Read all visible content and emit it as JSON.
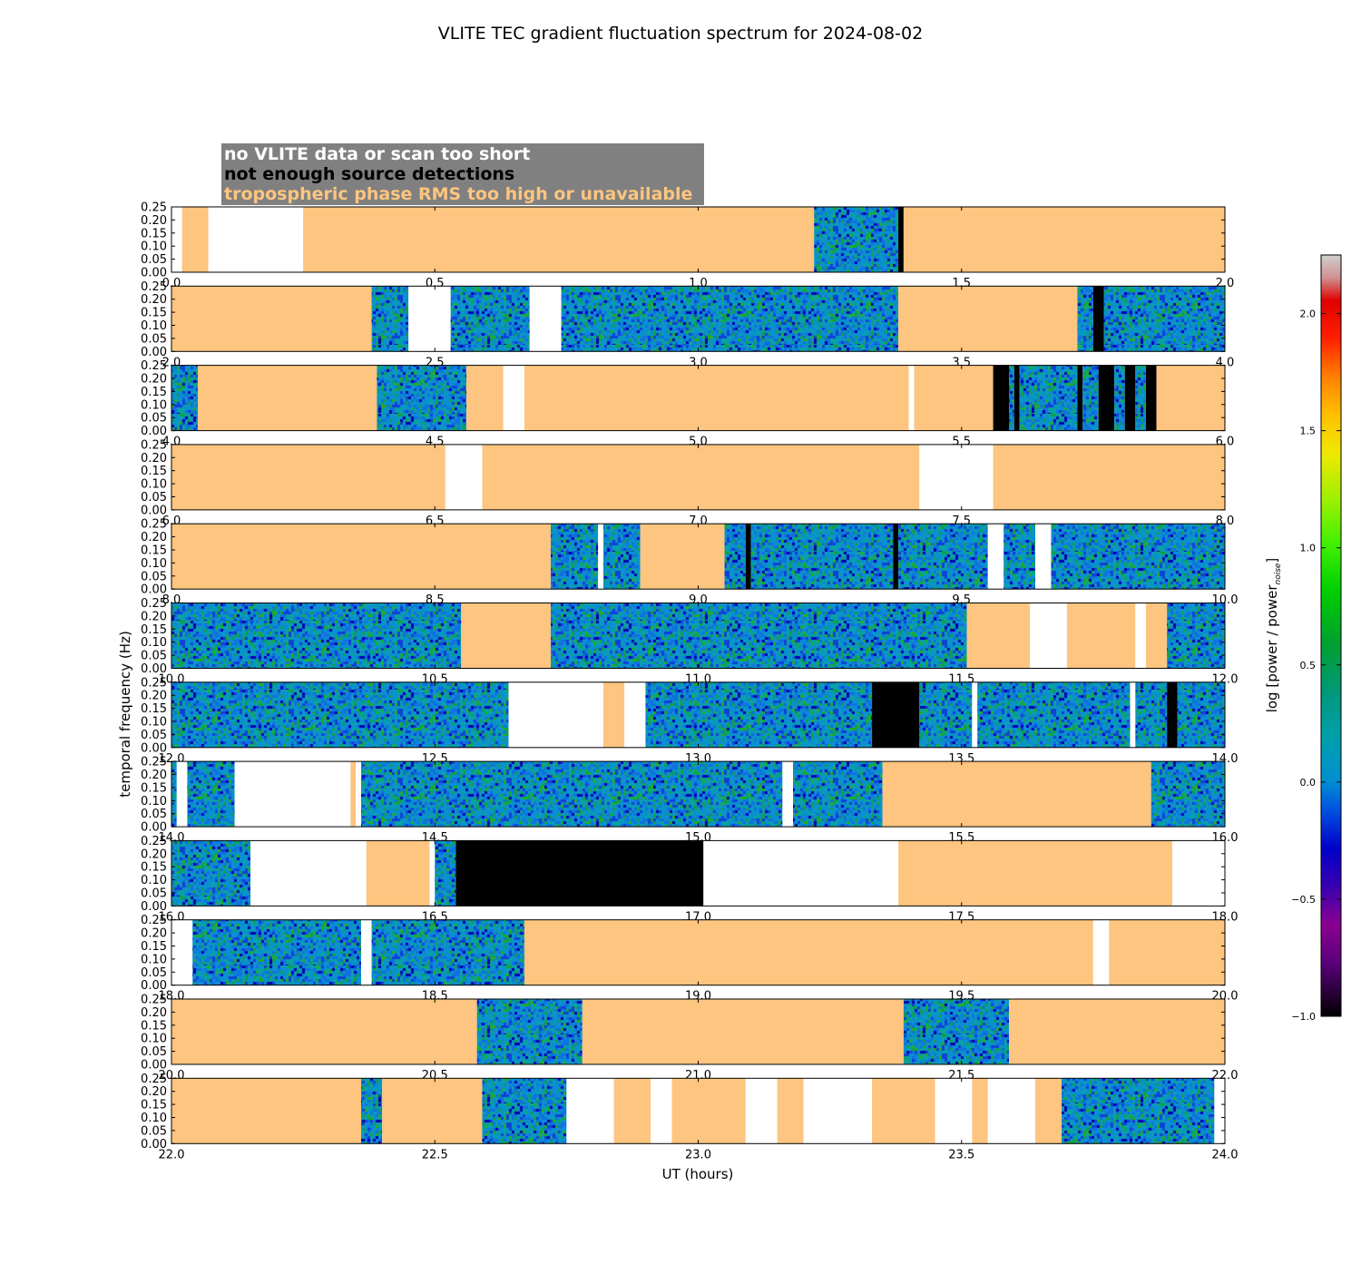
{
  "chart_data": {
    "type": "heatmap",
    "title": "VLITE TEC gradient fluctuation spectrum for 2024-08-02",
    "xlabel": "UT (hours)",
    "ylabel": "temporal frequency (Hz)",
    "ylim": [
      0,
      0.25
    ],
    "yticks": [
      "0.00",
      "0.05",
      "0.10",
      "0.15",
      "0.20",
      "0.25"
    ],
    "legend_position": "top-left",
    "legend": [
      {
        "label": "no VLITE data or scan too short",
        "text_color": "#ffffff"
      },
      {
        "label": "not enough source detections",
        "text_color": "#000000"
      },
      {
        "label": "tropospheric phase RMS too high or unavailable",
        "text_color": "#fdc57f"
      }
    ],
    "colors": {
      "unavailable": "#fdc57f",
      "too_few_detections": "#000000",
      "no_data": "#ffffff",
      "legend_box": "#808080"
    },
    "colorbar": {
      "label": "log [power / power",
      "label_sub": "noise",
      "label_close": "]",
      "range": [
        -1.0,
        2.25
      ],
      "ticks": [
        "−1.0",
        "−0.5",
        "0.0",
        "0.5",
        "1.0",
        "1.5",
        "2.0"
      ],
      "tick_values": [
        -1.0,
        -0.5,
        0.0,
        0.5,
        1.0,
        1.5,
        2.0
      ]
    },
    "panels": [
      {
        "x_range": [
          0,
          2
        ],
        "xticks": [
          "0.0",
          "0.5",
          "1.0",
          "1.5",
          "2.0"
        ],
        "segments": [
          [
            "u",
            0.02,
            0.07
          ],
          [
            "n",
            0.07,
            0.25
          ],
          [
            "u",
            0.25,
            1.22
          ],
          [
            "d",
            1.22,
            1.38
          ],
          [
            "b",
            1.38,
            1.39
          ],
          [
            "u",
            1.39,
            2.0
          ]
        ]
      },
      {
        "x_range": [
          2,
          4
        ],
        "xticks": [
          "2.0",
          "2.5",
          "3.0",
          "3.5",
          "4.0"
        ],
        "segments": [
          [
            "u",
            2.0,
            2.38
          ],
          [
            "d",
            2.38,
            2.45
          ],
          [
            "n",
            2.45,
            2.53
          ],
          [
            "d",
            2.53,
            2.68
          ],
          [
            "n",
            2.68,
            2.74
          ],
          [
            "d",
            2.74,
            3.38
          ],
          [
            "u",
            3.38,
            3.72
          ],
          [
            "d",
            3.72,
            3.75
          ],
          [
            "b",
            3.75,
            3.77
          ],
          [
            "d",
            3.77,
            4.0
          ]
        ]
      },
      {
        "x_range": [
          4,
          6
        ],
        "xticks": [
          "4.0",
          "4.5",
          "5.0",
          "5.5",
          "6.0"
        ],
        "segments": [
          [
            "d",
            4.0,
            4.05
          ],
          [
            "u",
            4.05,
            4.39
          ],
          [
            "d",
            4.39,
            4.56
          ],
          [
            "u",
            4.56,
            4.63
          ],
          [
            "n",
            4.63,
            4.67
          ],
          [
            "u",
            4.67,
            5.4
          ],
          [
            "n",
            5.4,
            5.41
          ],
          [
            "u",
            5.41,
            5.56
          ],
          [
            "b",
            5.56,
            5.59
          ],
          [
            "d",
            5.59,
            5.6
          ],
          [
            "b",
            5.6,
            5.61
          ],
          [
            "d",
            5.61,
            5.72
          ],
          [
            "b",
            5.72,
            5.73
          ],
          [
            "d",
            5.73,
            5.76
          ],
          [
            "b",
            5.76,
            5.79
          ],
          [
            "d",
            5.79,
            5.81
          ],
          [
            "b",
            5.81,
            5.83
          ],
          [
            "d",
            5.83,
            5.85
          ],
          [
            "b",
            5.85,
            5.87
          ],
          [
            "u",
            5.87,
            6.0
          ]
        ]
      },
      {
        "x_range": [
          6,
          8
        ],
        "xticks": [
          "6.0",
          "6.5",
          "7.0",
          "7.5",
          "8.0"
        ],
        "segments": [
          [
            "u",
            6.0,
            6.52
          ],
          [
            "n",
            6.52,
            6.59
          ],
          [
            "u",
            6.59,
            7.42
          ],
          [
            "n",
            7.42,
            7.56
          ],
          [
            "u",
            7.56,
            8.0
          ]
        ]
      },
      {
        "x_range": [
          8,
          10
        ],
        "xticks": [
          "8.0",
          "8.5",
          "9.0",
          "9.5",
          "10.0"
        ],
        "segments": [
          [
            "u",
            8.0,
            8.72
          ],
          [
            "d",
            8.72,
            8.81
          ],
          [
            "n",
            8.81,
            8.82
          ],
          [
            "d",
            8.82,
            8.89
          ],
          [
            "u",
            8.89,
            9.05
          ],
          [
            "d",
            9.05,
            9.09
          ],
          [
            "b",
            9.09,
            9.1
          ],
          [
            "d",
            9.1,
            9.37
          ],
          [
            "b",
            9.37,
            9.38
          ],
          [
            "d",
            9.38,
            9.55
          ],
          [
            "n",
            9.55,
            9.58
          ],
          [
            "d",
            9.58,
            9.64
          ],
          [
            "n",
            9.64,
            9.67
          ],
          [
            "d",
            9.67,
            10.0
          ]
        ]
      },
      {
        "x_range": [
          10,
          12
        ],
        "xticks": [
          "10.0",
          "10.5",
          "11.0",
          "11.5",
          "12.0"
        ],
        "segments": [
          [
            "d",
            10.0,
            10.55
          ],
          [
            "u",
            10.55,
            10.72
          ],
          [
            "d",
            10.72,
            11.51
          ],
          [
            "u",
            11.51,
            11.63
          ],
          [
            "n",
            11.63,
            11.7
          ],
          [
            "u",
            11.7,
            11.83
          ],
          [
            "n",
            11.83,
            11.85
          ],
          [
            "u",
            11.85,
            11.89
          ],
          [
            "d",
            11.89,
            12.0
          ]
        ]
      },
      {
        "x_range": [
          12,
          14
        ],
        "xticks": [
          "12.0",
          "12.5",
          "13.0",
          "13.5",
          "14.0"
        ],
        "segments": [
          [
            "d",
            12.0,
            12.64
          ],
          [
            "n",
            12.64,
            12.82
          ],
          [
            "u",
            12.82,
            12.86
          ],
          [
            "n",
            12.86,
            12.9
          ],
          [
            "d",
            12.9,
            13.33
          ],
          [
            "b",
            13.33,
            13.42
          ],
          [
            "d",
            13.42,
            13.52
          ],
          [
            "n",
            13.52,
            13.53
          ],
          [
            "d",
            13.53,
            13.82
          ],
          [
            "n",
            13.82,
            13.83
          ],
          [
            "d",
            13.83,
            13.89
          ],
          [
            "b",
            13.89,
            13.91
          ],
          [
            "d",
            13.91,
            14.0
          ]
        ]
      },
      {
        "x_range": [
          14,
          16
        ],
        "xticks": [
          "14.0",
          "14.5",
          "15.0",
          "15.5",
          "16.0"
        ],
        "segments": [
          [
            "d",
            14.0,
            14.01
          ],
          [
            "n",
            14.01,
            14.03
          ],
          [
            "d",
            14.03,
            14.12
          ],
          [
            "n",
            14.12,
            14.34
          ],
          [
            "u",
            14.34,
            14.35
          ],
          [
            "n",
            14.35,
            14.36
          ],
          [
            "d",
            14.36,
            15.16
          ],
          [
            "n",
            15.16,
            15.18
          ],
          [
            "d",
            15.18,
            15.35
          ],
          [
            "u",
            15.35,
            15.86
          ],
          [
            "d",
            15.86,
            16.0
          ]
        ]
      },
      {
        "x_range": [
          16,
          18
        ],
        "xticks": [
          "16.0",
          "16.5",
          "17.0",
          "17.5",
          "18.0"
        ],
        "segments": [
          [
            "d",
            16.0,
            16.15
          ],
          [
            "n",
            16.15,
            16.37
          ],
          [
            "u",
            16.37,
            16.49
          ],
          [
            "n",
            16.49,
            16.5
          ],
          [
            "d",
            16.5,
            16.54
          ],
          [
            "b",
            16.54,
            17.01
          ],
          [
            "n",
            17.01,
            17.38
          ],
          [
            "u",
            17.38,
            17.9
          ],
          [
            "n",
            17.9,
            18.0
          ]
        ]
      },
      {
        "x_range": [
          18,
          20
        ],
        "xticks": [
          "18.0",
          "18.5",
          "19.0",
          "19.5",
          "20.0"
        ],
        "segments": [
          [
            "n",
            18.0,
            18.04
          ],
          [
            "d",
            18.04,
            18.36
          ],
          [
            "n",
            18.36,
            18.38
          ],
          [
            "d",
            18.38,
            18.67
          ],
          [
            "u",
            18.67,
            19.75
          ],
          [
            "n",
            19.75,
            19.78
          ],
          [
            "u",
            19.78,
            20.0
          ]
        ]
      },
      {
        "x_range": [
          20,
          22
        ],
        "xticks": [
          "20.0",
          "20.5",
          "21.0",
          "21.5",
          "22.0"
        ],
        "segments": [
          [
            "u",
            20.0,
            20.58
          ],
          [
            "d",
            20.58,
            20.78
          ],
          [
            "u",
            20.78,
            21.39
          ],
          [
            "d",
            21.39,
            21.59
          ],
          [
            "u",
            21.59,
            22.0
          ]
        ]
      },
      {
        "x_range": [
          22,
          24
        ],
        "xticks": [
          "22.0",
          "22.5",
          "23.0",
          "23.5",
          "24.0"
        ],
        "segments": [
          [
            "u",
            22.0,
            22.36
          ],
          [
            "d",
            22.36,
            22.4
          ],
          [
            "u",
            22.4,
            22.59
          ],
          [
            "d",
            22.59,
            22.75
          ],
          [
            "n",
            22.75,
            22.84
          ],
          [
            "u",
            22.84,
            22.91
          ],
          [
            "n",
            22.91,
            22.95
          ],
          [
            "u",
            22.95,
            23.09
          ],
          [
            "n",
            23.09,
            23.15
          ],
          [
            "u",
            23.15,
            23.2
          ],
          [
            "n",
            23.2,
            23.33
          ],
          [
            "u",
            23.33,
            23.45
          ],
          [
            "n",
            23.45,
            23.52
          ],
          [
            "u",
            23.52,
            23.55
          ],
          [
            "n",
            23.55,
            23.64
          ],
          [
            "u",
            23.64,
            23.69
          ],
          [
            "d",
            23.69,
            23.98
          ],
          [
            "n",
            23.98,
            24.0
          ]
        ]
      }
    ]
  }
}
